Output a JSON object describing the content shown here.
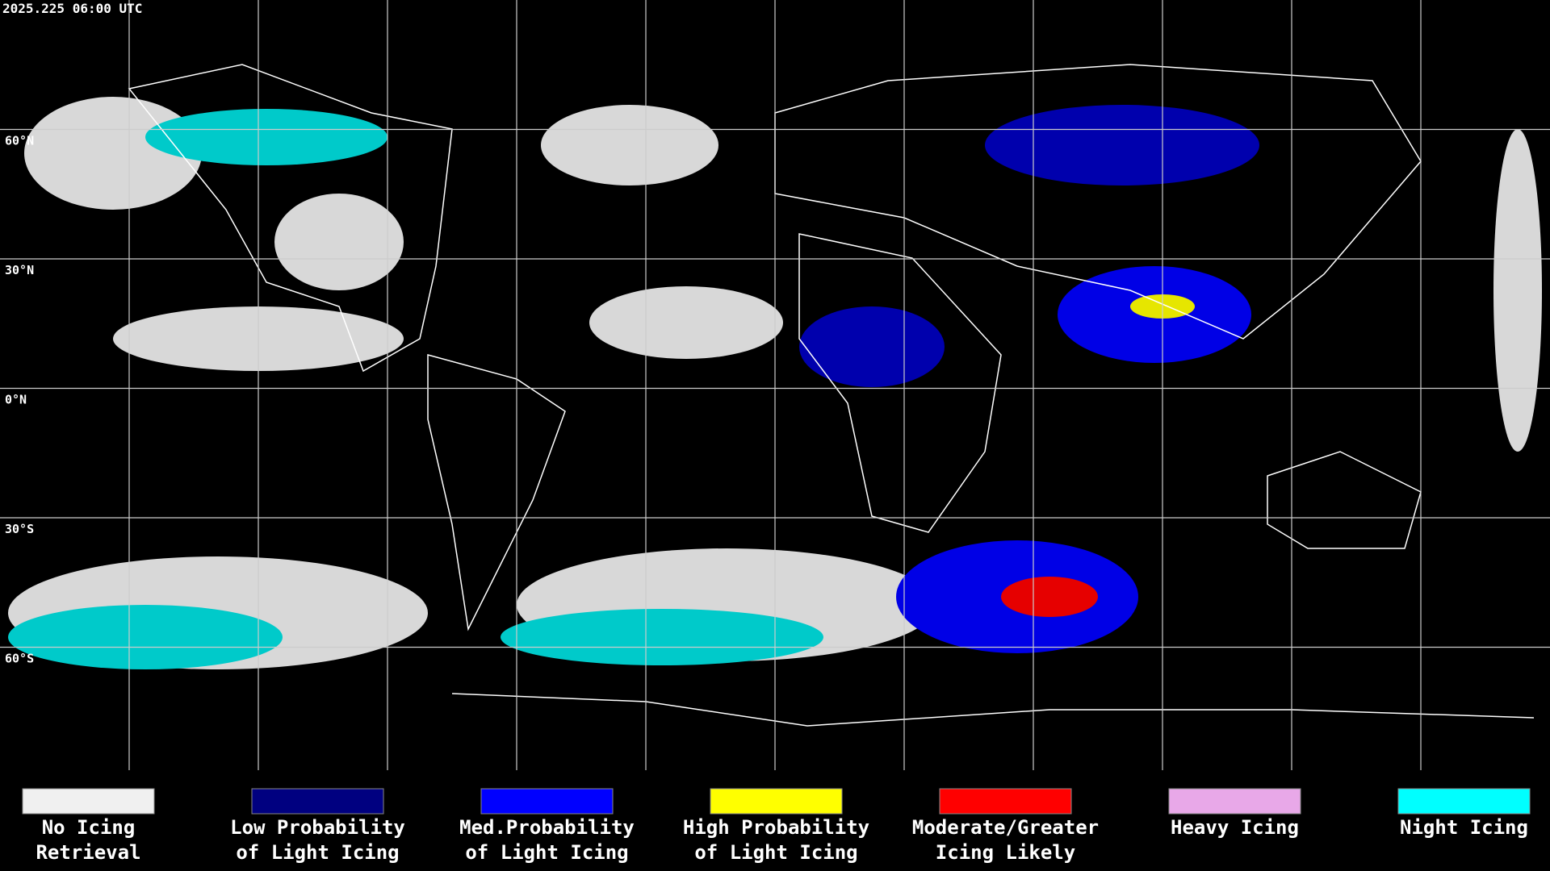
{
  "header": {
    "title": "2025.225 06:00 UTC"
  },
  "map": {
    "lat_labels": [
      "60°N",
      "30°N",
      "0°N",
      "30°S",
      "60°S"
    ]
  },
  "legend": {
    "items": [
      {
        "lines": [
          "No Icing",
          "Retrieval"
        ],
        "color": "#f0f0f0"
      },
      {
        "lines": [
          "Low Probability",
          "of Light Icing"
        ],
        "color": "#000080"
      },
      {
        "lines": [
          "Med.Probability",
          "of Light Icing"
        ],
        "color": "#0000ff"
      },
      {
        "lines": [
          "High Probability",
          "of Light Icing"
        ],
        "color": "#ffff00"
      },
      {
        "lines": [
          "Moderate/Greater",
          "Icing Likely"
        ],
        "color": "#ff0000"
      },
      {
        "lines": [
          "Heavy Icing"
        ],
        "color": "#e8a8e8"
      },
      {
        "lines": [
          "Night Icing"
        ],
        "color": "#00ffff"
      }
    ]
  }
}
